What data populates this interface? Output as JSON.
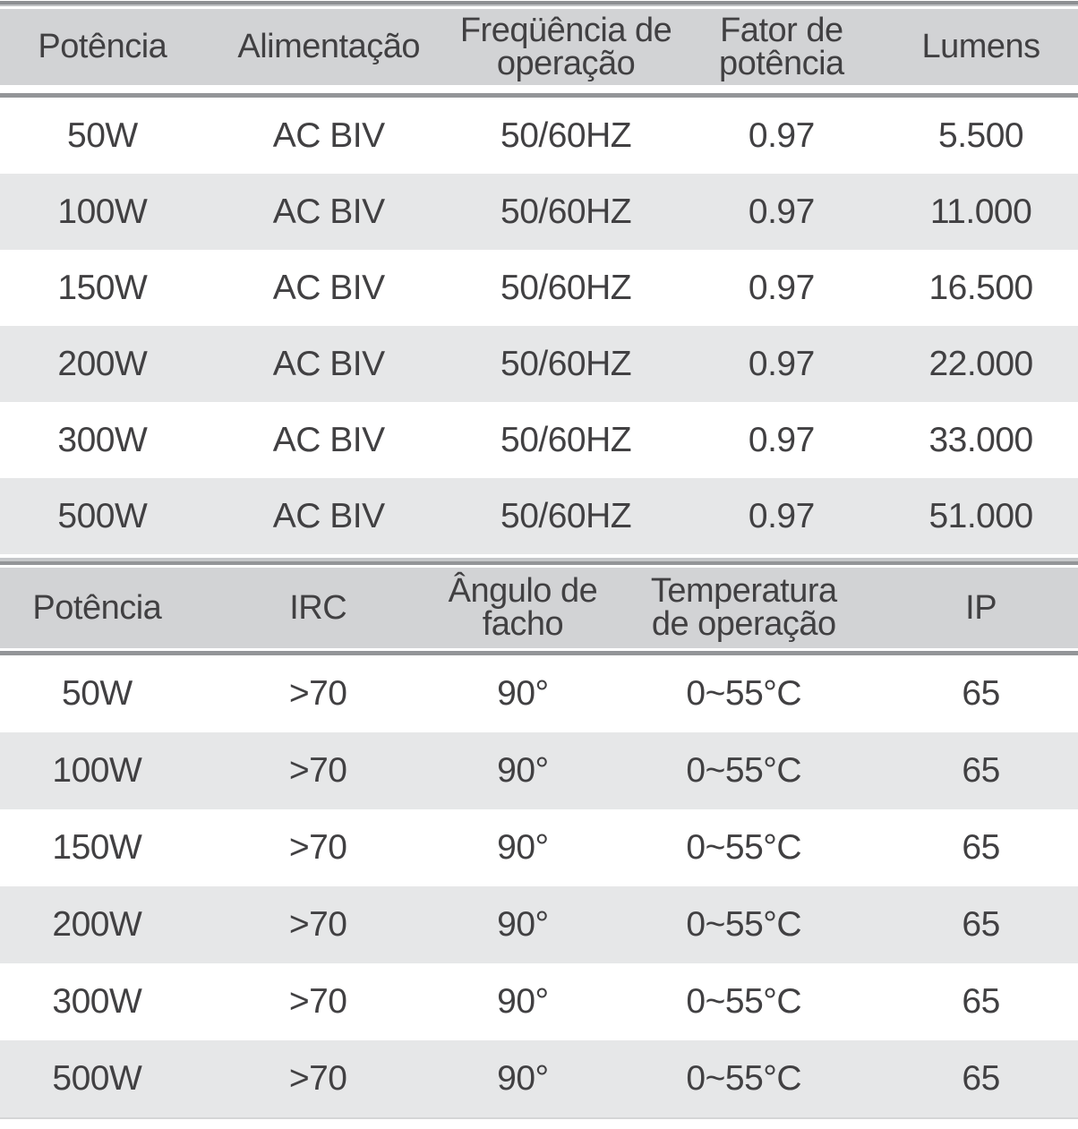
{
  "colors": {
    "header_bg": "#d2d3d5",
    "row_alt_bg": "#e6e7e8",
    "rule_gray": "#939598",
    "rule_light_gray": "#c6c8ca",
    "top_border_dark": "#8d8f92",
    "top_border_light": "#c0c2c4",
    "text": "#414042",
    "row_bg": "#ffffff"
  },
  "electrical_table": {
    "headers": [
      {
        "lines": [
          "Potência"
        ]
      },
      {
        "lines": [
          "Alimentação"
        ]
      },
      {
        "lines": [
          "Freqüência de",
          "operação"
        ]
      },
      {
        "lines": [
          "Fator de",
          "potência"
        ]
      },
      {
        "lines": [
          "Lumens"
        ]
      }
    ],
    "rows": [
      [
        "50W",
        "AC BIV",
        "50/60HZ",
        "0.97",
        "5.500"
      ],
      [
        "100W",
        "AC BIV",
        "50/60HZ",
        "0.97",
        "11.000"
      ],
      [
        "150W",
        "AC BIV",
        "50/60HZ",
        "0.97",
        "16.500"
      ],
      [
        "200W",
        "AC BIV",
        "50/60HZ",
        "0.97",
        "22.000"
      ],
      [
        "300W",
        "AC BIV",
        "50/60HZ",
        "0.97",
        "33.000"
      ],
      [
        "500W",
        "AC BIV",
        "50/60HZ",
        "0.97",
        "51.000"
      ]
    ]
  },
  "optical_table": {
    "headers": [
      {
        "lines": [
          "Potência"
        ]
      },
      {
        "lines": [
          "IRC"
        ]
      },
      {
        "lines": [
          "Ângulo de",
          "facho"
        ]
      },
      {
        "lines": [
          "Temperatura",
          "de operação"
        ]
      },
      {
        "lines": [
          "IP"
        ]
      }
    ],
    "rows": [
      [
        "50W",
        ">70",
        "90°",
        "0~55°C",
        "65"
      ],
      [
        "100W",
        ">70",
        "90°",
        "0~55°C",
        "65"
      ],
      [
        "150W",
        ">70",
        "90°",
        "0~55°C",
        "65"
      ],
      [
        "200W",
        ">70",
        "90°",
        "0~55°C",
        "65"
      ],
      [
        "300W",
        ">70",
        "90°",
        "0~55°C",
        "65"
      ],
      [
        "500W",
        ">70",
        "90°",
        "0~55°C",
        "65"
      ]
    ]
  }
}
